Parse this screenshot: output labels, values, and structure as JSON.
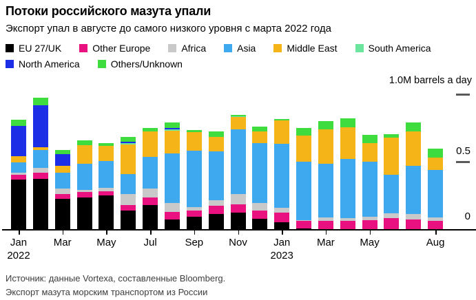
{
  "header": {
    "title": "Потоки российского мазута упали",
    "subtitle": "Экспорт упал в августе до самого низкого уровня с марта 2022 года"
  },
  "footer": {
    "source": "Источник: данные Vortexa, составленные Bloomberg.",
    "note": "Экспорт мазута морским транспортом из России"
  },
  "chart_data": {
    "type": "bar",
    "stacked": true,
    "title": "Потоки российского мазута упали",
    "subtitle": "Экспорт упал в августе до самого низкого уровня с марта 2022 года",
    "unit": "M barrels a day",
    "ylim": [
      0,
      1.0
    ],
    "grid": false,
    "legend_position": "top",
    "legend_rows": [
      6,
      2
    ],
    "y_axis": {
      "unit_label": "1.0M barrels a day",
      "mid_label": "0.5",
      "zero_label": "0",
      "tick_values": [
        0,
        0.5,
        1.0
      ]
    },
    "categories": [
      "Jan 2022",
      "Feb 2022",
      "Mar 2022",
      "Apr 2022",
      "May 2022",
      "Jun 2022",
      "Jul 2022",
      "Aug 2022",
      "Sep 2022",
      "Oct 2022",
      "Nov 2022",
      "Dec 2022",
      "Jan 2023",
      "Feb 2023",
      "Mar 2023",
      "Apr 2023",
      "May 2023",
      "Jun 2023",
      "Jul 2023",
      "Aug 2023"
    ],
    "x_ticks": [
      {
        "index": 0,
        "label": "Jan",
        "year": "2022"
      },
      {
        "index": 2,
        "label": "Mar"
      },
      {
        "index": 4,
        "label": "May"
      },
      {
        "index": 6,
        "label": "Jul"
      },
      {
        "index": 8,
        "label": "Sep"
      },
      {
        "index": 10,
        "label": "Nov"
      },
      {
        "index": 12,
        "label": "Jan",
        "year": "2023"
      },
      {
        "index": 14,
        "label": "Mar"
      },
      {
        "index": 16,
        "label": "May"
      },
      {
        "index": 19,
        "label": "Aug"
      }
    ],
    "series": [
      {
        "name": "EU 27/UK",
        "color": "#000000",
        "values": [
          0.375,
          0.38,
          0.23,
          0.24,
          0.255,
          0.145,
          0.185,
          0.075,
          0.095,
          0.115,
          0.13,
          0.08,
          0.055,
          0.01,
          0,
          0,
          0,
          0,
          0,
          0
        ]
      },
      {
        "name": "Other Europe",
        "color": "#E8117F",
        "values": [
          0.035,
          0.045,
          0.035,
          0.04,
          0.03,
          0.04,
          0.055,
          0.06,
          0.05,
          0.065,
          0.06,
          0.065,
          0.075,
          0.055,
          0.065,
          0.065,
          0.07,
          0.085,
          0.075,
          0.065
        ]
      },
      {
        "name": "Africa",
        "color": "#C9C9C9",
        "values": [
          0.015,
          0.035,
          0.04,
          0.015,
          0.025,
          0.08,
          0.065,
          0.065,
          0.025,
          0.04,
          0.075,
          0.055,
          0.035,
          0.005,
          0.025,
          0.02,
          0.025,
          0.035,
          0.04,
          0.025
        ]
      },
      {
        "name": "Asia",
        "color": "#3FA9F0",
        "values": [
          0.075,
          0.13,
          0.12,
          0.195,
          0.2,
          0.15,
          0.235,
          0.365,
          0.415,
          0.36,
          0.48,
          0.445,
          0.475,
          0.435,
          0.4,
          0.44,
          0.41,
          0.29,
          0.36,
          0.355
        ]
      },
      {
        "name": "Middle East",
        "color": "#F5B417",
        "values": [
          0.045,
          0.02,
          0.05,
          0.14,
          0.115,
          0.22,
          0.19,
          0.17,
          0.14,
          0.11,
          0.09,
          0.085,
          0.17,
          0.195,
          0.255,
          0.235,
          0.14,
          0.275,
          0.255,
          0.09
        ]
      },
      {
        "name": "South America",
        "color": "#6CE59F",
        "values": [
          0,
          0,
          0,
          0,
          0,
          0.008,
          0,
          0.008,
          0,
          0,
          0.005,
          0,
          0,
          0,
          0,
          0,
          0,
          0,
          0,
          0
        ]
      },
      {
        "name": "North America",
        "color": "#1C2FE6",
        "values": [
          0.225,
          0.315,
          0.085,
          0,
          0,
          0.012,
          0,
          0.012,
          0,
          0,
          0,
          0,
          0,
          0,
          0,
          0,
          0,
          0,
          0,
          0
        ]
      },
      {
        "name": "Others/Unknown",
        "color": "#3FDC3F",
        "values": [
          0.045,
          0.055,
          0.03,
          0.035,
          0.02,
          0.035,
          0.025,
          0.04,
          0.015,
          0.04,
          0.01,
          0.035,
          0.012,
          0.055,
          0.06,
          0.065,
          0.06,
          0.025,
          0.065,
          0.065
        ]
      }
    ]
  }
}
